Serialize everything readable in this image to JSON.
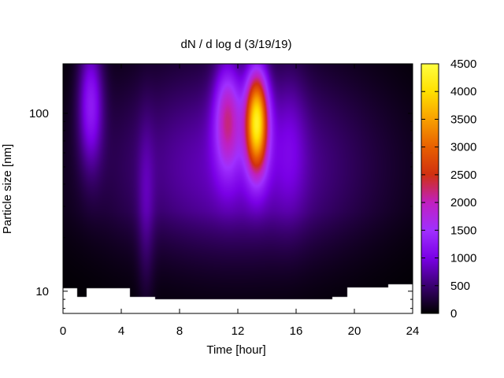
{
  "chart_data": {
    "type": "heatmap",
    "title": "dN / d log d (3/19/19)",
    "xlabel": "Time [hour]",
    "ylabel": "Particle size [nm]",
    "xlim": [
      0,
      24
    ],
    "ylim": [
      7.5,
      190
    ],
    "yscale": "log",
    "x_ticks": [
      0,
      4,
      8,
      12,
      16,
      20,
      24
    ],
    "y_ticks": [
      10,
      100
    ],
    "grid": false,
    "colorbar": {
      "range": [
        0,
        4500
      ],
      "ticks": [
        0,
        500,
        1000,
        1500,
        2000,
        2500,
        3000,
        3500,
        4000,
        4500
      ],
      "colormap": [
        "#000000",
        "#3a0070",
        "#7a00e6",
        "#a030ff",
        "#c020c0",
        "#d03010",
        "#e86000",
        "#f8a000",
        "#ffe000",
        "#ffff40"
      ]
    },
    "data_range": {
      "x": [
        0,
        24
      ],
      "y_top": 190,
      "y_bottom": [
        [
          0,
          10.4
        ],
        [
          1.0,
          10.4
        ],
        [
          1.0,
          9.3
        ],
        [
          1.6,
          9.3
        ],
        [
          1.6,
          10.4
        ],
        [
          4.6,
          10.4
        ],
        [
          4.6,
          9.3
        ],
        [
          6.3,
          9.3
        ],
        [
          6.3,
          9.0
        ],
        [
          18.5,
          9.0
        ],
        [
          18.5,
          9.3
        ],
        [
          19.5,
          9.3
        ],
        [
          19.5,
          10.5
        ],
        [
          22.3,
          10.5
        ],
        [
          22.3,
          10.9
        ],
        [
          24,
          10.9
        ]
      ]
    },
    "background": {
      "peak": 850,
      "xwidth": 9.0,
      "center_size": 50
    },
    "peaks": [
      {
        "time": 1.9,
        "size": 115,
        "amplitude": 1100,
        "time_width": 0.6,
        "log_size_width": 0.25
      },
      {
        "time": 5.7,
        "size": 28,
        "amplitude": 350,
        "time_width": 0.4,
        "log_size_width": 0.35
      },
      {
        "time": 11.3,
        "size": 95,
        "amplitude": 1500,
        "time_width": 0.65,
        "log_size_width": 0.22
      },
      {
        "time": 13.3,
        "size": 90,
        "amplitude": 3600,
        "time_width": 0.55,
        "log_size_width": 0.2
      },
      {
        "time": 15.6,
        "size": 70,
        "amplitude": 350,
        "time_width": 0.8,
        "log_size_width": 0.3
      }
    ]
  }
}
